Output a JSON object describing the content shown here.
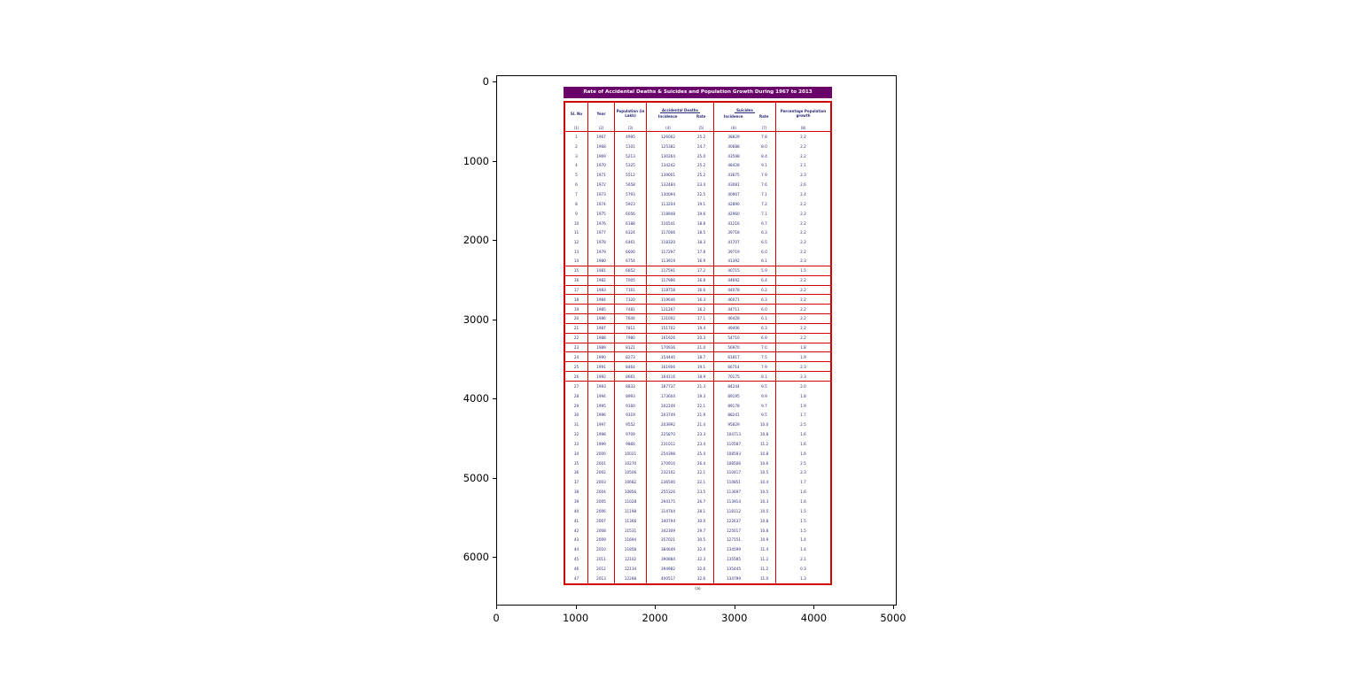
{
  "figure": {
    "x_axis_ticks": [
      0,
      1000,
      2000,
      3000,
      4000,
      5000
    ],
    "y_axis_ticks": [
      0,
      1000,
      2000,
      3000,
      4000,
      5000,
      6000
    ]
  },
  "colors": {
    "title_bg": "#6a006a",
    "table_border": "#d40000",
    "table_text": "#2a2a7a"
  },
  "chart_data": {
    "type": "table",
    "title": "Rate of Accidental Deaths & Suicides and Population Growth During 1967 to 2013",
    "caption": "(a)",
    "column_headers": {
      "sl_no": "Sl. No",
      "year": "Year",
      "population": "Population (in Lakh)",
      "accidental_deaths": "Accidental Deaths",
      "suicides": "Suicides",
      "incidence": "Incidence",
      "rate": "Rate",
      "percentage_growth": "Percentage Population growth"
    },
    "column_numbers": [
      "(1)",
      "(2)",
      "(3)",
      "(4)",
      "(5)",
      "(6)",
      "(7)",
      "(8)"
    ],
    "rows": [
      [
        "1",
        "1967",
        "4995",
        "126062",
        "25.2",
        "38829",
        "7.8",
        "2.2"
      ],
      [
        "2",
        "1968",
        "5101",
        "125382",
        "24.7",
        "40688",
        "8.0",
        "2.2"
      ],
      [
        "3",
        "1969",
        "5213",
        "130264",
        "25.0",
        "43598",
        "8.4",
        "2.2"
      ],
      [
        "4",
        "1970",
        "5325",
        "134242",
        "25.2",
        "48428",
        "9.1",
        "2.1"
      ],
      [
        "5",
        "1971",
        "5512",
        "139001",
        "25.2",
        "43675",
        "7.9",
        "2.3"
      ],
      [
        "6",
        "1972",
        "5658",
        "132484",
        "23.4",
        "43081",
        "7.6",
        "2.6"
      ],
      [
        "7",
        "1973",
        "5793",
        "130094",
        "22.5",
        "40967",
        "7.1",
        "2.4"
      ],
      [
        "8",
        "1974",
        "5923",
        "113204",
        "19.1",
        "42890",
        "7.2",
        "2.2"
      ],
      [
        "9",
        "1975",
        "6056",
        "118948",
        "19.6",
        "42960",
        "7.1",
        "2.2"
      ],
      [
        "10",
        "1976",
        "6188",
        "116541",
        "18.8",
        "41216",
        "6.7",
        "2.2"
      ],
      [
        "11",
        "1977",
        "6324",
        "117006",
        "18.5",
        "39718",
        "6.3",
        "2.2"
      ],
      [
        "12",
        "1978",
        "6461",
        "118320",
        "18.3",
        "41707",
        "6.5",
        "2.2"
      ],
      [
        "13",
        "1979",
        "6600",
        "117297",
        "17.8",
        "39719",
        "6.0",
        "2.2"
      ],
      [
        "14",
        "1980",
        "6754",
        "113919",
        "16.9",
        "41392",
        "6.1",
        "2.3"
      ],
      [
        "15",
        "1981",
        "6852",
        "117591",
        "17.2",
        "40715",
        "5.9",
        "1.5"
      ],
      [
        "16",
        "1982",
        "7005",
        "117986",
        "16.8",
        "44692",
        "6.4",
        "2.2"
      ],
      [
        "17",
        "1983",
        "7161",
        "118758",
        "16.6",
        "44078",
        "6.2",
        "2.2"
      ],
      [
        "18",
        "1984",
        "7320",
        "119646",
        "16.3",
        "46071",
        "6.3",
        "2.2"
      ],
      [
        "19",
        "1985",
        "7481",
        "121267",
        "16.2",
        "44711",
        "6.0",
        "2.2"
      ],
      [
        "20",
        "1986",
        "7644",
        "131002",
        "17.1",
        "46428",
        "6.1",
        "2.2"
      ],
      [
        "21",
        "1987",
        "7811",
        "151702",
        "19.4",
        "49406",
        "6.3",
        "2.2"
      ],
      [
        "22",
        "1988",
        "7980",
        "161926",
        "20.3",
        "54710",
        "6.9",
        "2.2"
      ],
      [
        "23",
        "1989",
        "8121",
        "170936",
        "21.0",
        "56970",
        "7.0",
        "1.8"
      ],
      [
        "24",
        "1990",
        "8273",
        "154440",
        "18.7",
        "61817",
        "7.5",
        "1.9"
      ],
      [
        "25",
        "1991",
        "8464",
        "161906",
        "19.1",
        "66714",
        "7.9",
        "2.3"
      ],
      [
        "26",
        "1992",
        "8661",
        "164116",
        "18.9",
        "70175",
        "8.1",
        "2.3"
      ],
      [
        "27",
        "1993",
        "8833",
        "187737",
        "21.3",
        "84244",
        "9.5",
        "2.0"
      ],
      [
        "28",
        "1994",
        "8993",
        "173604",
        "19.3",
        "89195",
        "9.9",
        "1.8"
      ],
      [
        "29",
        "1995",
        "9160",
        "202249",
        "22.1",
        "89178",
        "9.7",
        "1.9"
      ],
      [
        "30",
        "1996",
        "9319",
        "203749",
        "21.9",
        "88241",
        "9.5",
        "1.7"
      ],
      [
        "31",
        "1997",
        "9552",
        "203992",
        "21.4",
        "95829",
        "10.0",
        "2.5"
      ],
      [
        "32",
        "1998",
        "9709",
        "225870",
        "23.3",
        "104713",
        "10.8",
        "1.6"
      ],
      [
        "33",
        "1999",
        "9866",
        "231012",
        "23.4",
        "110587",
        "11.2",
        "1.6"
      ],
      [
        "34",
        "2000",
        "10021",
        "254398",
        "25.4",
        "108593",
        "10.8",
        "1.6"
      ],
      [
        "35",
        "2001",
        "10270",
        "270910",
        "26.4",
        "108506",
        "10.6",
        "2.5"
      ],
      [
        "36",
        "2002",
        "10506",
        "232102",
        "22.1",
        "110417",
        "10.5",
        "2.3"
      ],
      [
        "37",
        "2003",
        "10682",
        "236500",
        "22.1",
        "110851",
        "10.4",
        "1.7"
      ],
      [
        "38",
        "2004",
        "10856",
        "255326",
        "23.5",
        "113697",
        "10.5",
        "1.6"
      ],
      [
        "39",
        "2005",
        "11028",
        "294175",
        "26.7",
        "113914",
        "10.3",
        "1.6"
      ],
      [
        "40",
        "2006",
        "11198",
        "314704",
        "28.1",
        "118112",
        "10.5",
        "1.5"
      ],
      [
        "41",
        "2007",
        "11366",
        "340794",
        "30.0",
        "122637",
        "10.8",
        "1.5"
      ],
      [
        "42",
        "2008",
        "11531",
        "342309",
        "29.7",
        "125017",
        "10.8",
        "1.5"
      ],
      [
        "43",
        "2009",
        "11694",
        "357021",
        "30.5",
        "127151",
        "10.9",
        "1.4"
      ],
      [
        "44",
        "2010",
        "11858",
        "384649",
        "32.4",
        "134599",
        "11.4",
        "1.4"
      ],
      [
        "45",
        "2011",
        "12102",
        "390884",
        "32.3",
        "135585",
        "11.2",
        "2.1"
      ],
      [
        "46",
        "2012",
        "12134",
        "394982",
        "32.6",
        "135445",
        "11.2",
        "0.3"
      ],
      [
        "47",
        "2013",
        "12288",
        "400517",
        "32.6",
        "134799",
        "11.0",
        "1.3"
      ]
    ]
  }
}
